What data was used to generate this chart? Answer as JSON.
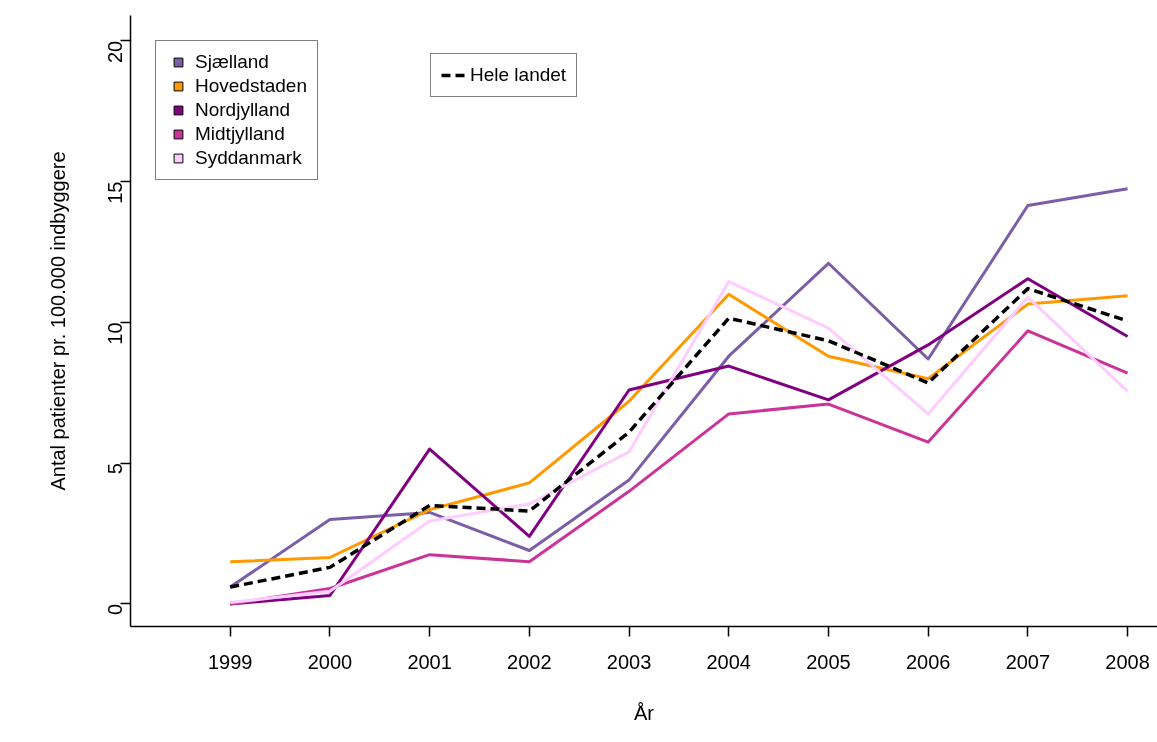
{
  "chart_data": {
    "type": "line",
    "xlabel": "År",
    "ylabel": "Antal patienter pr. 100.000 indbyggere",
    "x": [
      1999,
      2000,
      2001,
      2002,
      2003,
      2004,
      2005,
      2006,
      2007,
      2008
    ],
    "xlim": [
      1998,
      2008.3
    ],
    "xticks": [
      1999,
      2000,
      2001,
      2002,
      2003,
      2004,
      2005,
      2006,
      2007,
      2008
    ],
    "ylim": [
      -0.8,
      20.9
    ],
    "yticks": [
      0,
      5,
      10,
      15,
      20
    ],
    "grid": false,
    "legend": "top left",
    "marker": "none",
    "series": [
      {
        "name": "Sjælland",
        "color": "#7b5ea7",
        "values": [
          0.6,
          3.0,
          3.25,
          1.9,
          4.4,
          8.8,
          12.1,
          8.7,
          14.15,
          14.75
        ]
      },
      {
        "name": "Hovedstaden",
        "color": "#ff9900",
        "values": [
          1.5,
          1.65,
          3.35,
          4.3,
          7.2,
          11.0,
          8.8,
          8.0,
          10.65,
          10.95
        ]
      },
      {
        "name": "Nordjylland",
        "color": "#800080",
        "values": [
          0.0,
          0.3,
          5.5,
          2.4,
          7.6,
          8.45,
          7.25,
          9.2,
          11.55,
          9.5
        ]
      },
      {
        "name": "Midtjylland",
        "color": "#cc3399",
        "values": [
          0.0,
          0.55,
          1.75,
          1.5,
          4.0,
          6.75,
          7.1,
          5.75,
          9.7,
          8.2
        ]
      },
      {
        "name": "Syddanmark",
        "color": "#ffccff",
        "values": [
          0.05,
          0.45,
          2.95,
          3.55,
          5.4,
          11.45,
          9.8,
          6.75,
          10.9,
          7.55
        ]
      },
      {
        "name": "Hele landet",
        "color": "#000000",
        "line_style": "dashed",
        "values": [
          0.6,
          1.3,
          3.5,
          3.3,
          6.1,
          10.15,
          9.35,
          7.85,
          11.2,
          10.05
        ]
      }
    ]
  }
}
